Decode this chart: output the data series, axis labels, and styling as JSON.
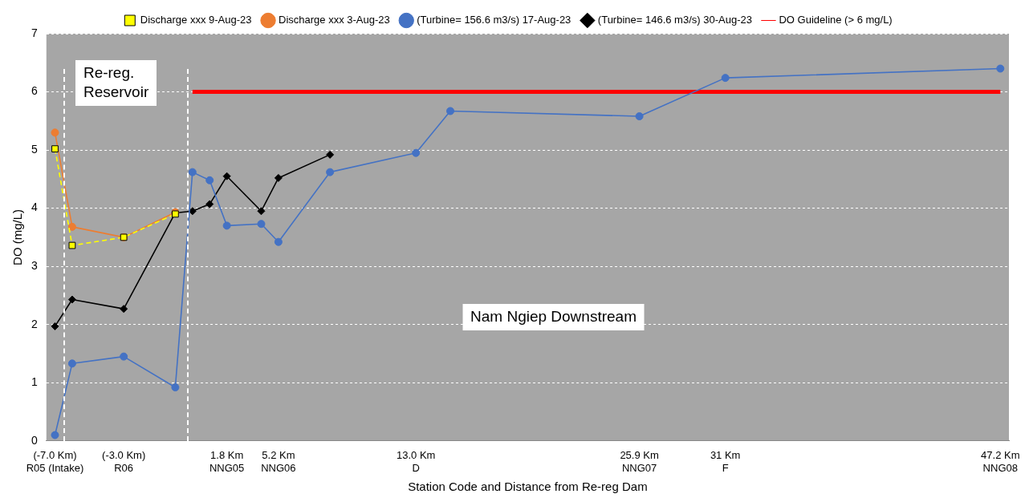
{
  "chart_data": {
    "type": "line",
    "xlabel": "Station Code and Distance from Re-reg Dam",
    "ylabel": "DO (mg/L)",
    "categories": [
      "(-7.0 Km)\nR05 (Intake)",
      null,
      null,
      null,
      "(-3.0 Km)\nR06",
      null,
      null,
      null,
      null,
      null,
      "1.8 Km\nNNG05",
      null,
      null,
      "5.2 Km\nNNG06",
      null,
      null,
      null,
      null,
      null,
      null,
      null,
      "13.0 Km\nD",
      null,
      null,
      null,
      null,
      null,
      null,
      null,
      null,
      null,
      null,
      null,
      null,
      "25.9 Km\nNNG07",
      null,
      null,
      null,
      null,
      "31 Km\nF",
      null,
      null,
      null,
      null,
      null,
      null,
      null,
      null,
      null,
      null,
      null,
      null,
      null,
      null,
      null,
      "47.2 Km\nNNG08"
    ],
    "series": [
      {
        "name": "Discharge xxx 3-Aug-23",
        "color": "#ed7d31",
        "marker": "circle",
        "line_style": "solid",
        "values": [
          5.3,
          3.68,
          null,
          null,
          3.5,
          null,
          null,
          3.93,
          null,
          null,
          null,
          null,
          null,
          null,
          null,
          null,
          null,
          null,
          null,
          null,
          null,
          null,
          null,
          null,
          null,
          null,
          null,
          null,
          null,
          null,
          null,
          null,
          null,
          null,
          null,
          null,
          null,
          null,
          null,
          null,
          null,
          null,
          null,
          null,
          null,
          null,
          null,
          null,
          null,
          null,
          null,
          null,
          null,
          null,
          null,
          null
        ]
      },
      {
        "name": "Discharge xxx 9-Aug-23",
        "color": "#ffff00",
        "marker": "square",
        "line_style": "dashed",
        "values": [
          5.02,
          3.36,
          null,
          null,
          3.5,
          null,
          null,
          3.9,
          null,
          null,
          null,
          null,
          null,
          null,
          null,
          null,
          null,
          null,
          null,
          null,
          null,
          null,
          null,
          null,
          null,
          null,
          null,
          null,
          null,
          null,
          null,
          null,
          null,
          null,
          null,
          null,
          null,
          null,
          null,
          null,
          null,
          null,
          null,
          null,
          null,
          null,
          null,
          null,
          null,
          null,
          null,
          null,
          null,
          null,
          null,
          null
        ]
      },
      {
        "name": "(Turbine= 156.6 m3/s) 17-Aug-23",
        "color": "#4472c4",
        "marker": "circle",
        "line_style": "solid",
        "values": [
          0.1,
          1.33,
          null,
          null,
          1.45,
          null,
          null,
          0.92,
          4.62,
          4.48,
          3.7,
          null,
          3.73,
          3.42,
          null,
          null,
          4.62,
          null,
          null,
          null,
          null,
          4.95,
          null,
          5.67,
          null,
          null,
          null,
          null,
          null,
          null,
          null,
          null,
          null,
          null,
          5.58,
          null,
          null,
          null,
          null,
          6.24,
          null,
          null,
          null,
          null,
          null,
          null,
          null,
          null,
          null,
          null,
          null,
          null,
          null,
          null,
          null,
          6.4
        ]
      },
      {
        "name": "(Turbine= 146.6 m3/s) 30-Aug-23",
        "color": "#000000",
        "marker": "diamond",
        "line_style": "solid",
        "values": [
          1.97,
          2.43,
          null,
          null,
          2.27,
          null,
          null,
          3.92,
          3.95,
          4.07,
          4.55,
          null,
          3.95,
          4.52,
          null,
          null,
          4.92,
          null,
          null,
          null,
          null,
          null,
          null,
          null,
          null,
          null,
          null,
          null,
          null,
          null,
          null,
          null,
          null,
          null,
          null,
          null,
          null,
          null,
          null,
          null,
          null,
          null,
          null,
          null,
          null,
          null,
          null,
          null,
          null,
          null,
          null,
          null,
          null,
          null,
          null,
          null
        ]
      },
      {
        "name": "DO Guideline (> 6 mg/L)",
        "color": "#ff0000",
        "marker": "none",
        "line_style": "solid",
        "values": [
          null,
          null,
          null,
          null,
          null,
          null,
          null,
          null,
          6,
          6,
          6,
          6,
          6,
          6,
          6,
          6,
          6,
          6,
          6,
          6,
          6,
          6,
          6,
          6,
          6,
          6,
          6,
          6,
          6,
          6,
          6,
          6,
          6,
          6,
          6,
          6,
          6,
          6,
          6,
          6,
          6,
          6,
          6,
          6,
          6,
          6,
          6,
          6,
          6,
          6,
          6,
          6,
          6,
          6,
          6,
          6
        ]
      }
    ],
    "ylim": [
      0,
      7
    ],
    "yticks": [
      0,
      1,
      2,
      3,
      4,
      5,
      6,
      7
    ],
    "grid": "y",
    "legend": "top",
    "annotations": [
      "Re-reg.\nReservoir",
      "Nam Ngiep Downstream"
    ]
  }
}
